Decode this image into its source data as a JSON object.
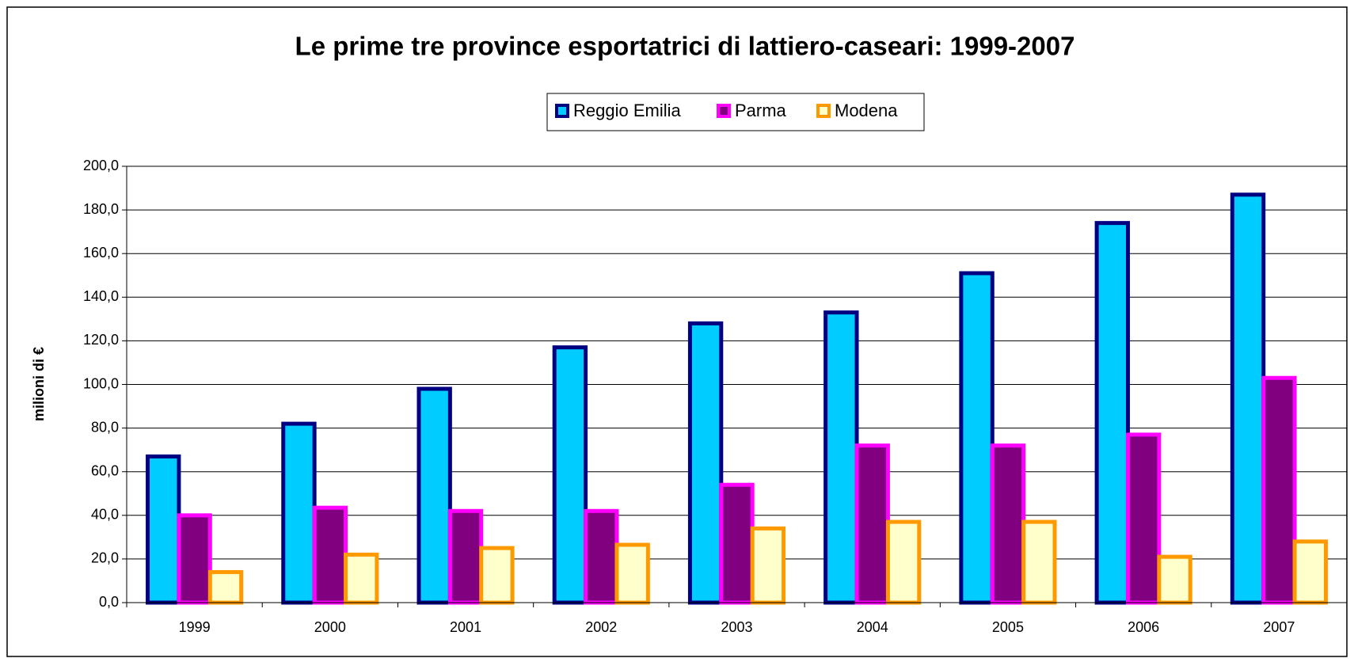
{
  "chart_data": {
    "type": "bar",
    "title": "Le prime tre province esportatrici di lattiero-caseari: 1999-2007",
    "y_label": "milioni di €",
    "categories": [
      "1999",
      "2000",
      "2001",
      "2002",
      "2003",
      "2004",
      "2005",
      "2006",
      "2007"
    ],
    "series": [
      {
        "name": "Reggio Emilia",
        "color": "#00ccff",
        "edgecolor": "#000080",
        "values": [
          67,
          82,
          98,
          117,
          128,
          133,
          151,
          174,
          187
        ]
      },
      {
        "name": "Parma",
        "color": "#800080",
        "edgecolor": "#ff00ff",
        "values": [
          40,
          43.5,
          42,
          42,
          54,
          72,
          72,
          77,
          103
        ]
      },
      {
        "name": "Modena",
        "color": "#ffffcc",
        "edgecolor": "#ff9900",
        "values": [
          14,
          22,
          25,
          26.5,
          34,
          37,
          37,
          21,
          28
        ]
      }
    ],
    "ylim": [
      0,
      200
    ],
    "yticks": [
      {
        "value": 0,
        "label": "0,0"
      },
      {
        "value": 20,
        "label": "20,0"
      },
      {
        "value": 40,
        "label": "40,0"
      },
      {
        "value": 60,
        "label": "60,0"
      },
      {
        "value": 80,
        "label": "80,0"
      },
      {
        "value": 100,
        "label": "100,0"
      },
      {
        "value": 120,
        "label": "120,0"
      },
      {
        "value": 140,
        "label": "140,0"
      },
      {
        "value": 160,
        "label": "160,0"
      },
      {
        "value": 180,
        "label": "180,0"
      },
      {
        "value": 200,
        "label": "200,0"
      }
    ],
    "grid": true
  }
}
